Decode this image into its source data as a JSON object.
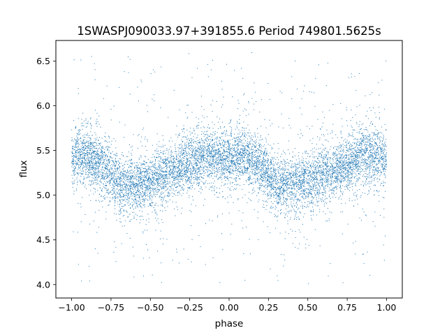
{
  "chart_data": {
    "type": "scatter",
    "title": "1SWASPJ090033.97+391855.6 Period 749801.5625s",
    "xlabel": "phase",
    "ylabel": "flux",
    "xlim": [
      -1.1,
      1.1
    ],
    "ylim": [
      3.85,
      6.73
    ],
    "xticks": [
      {
        "value": -1.0,
        "label": "−1.00"
      },
      {
        "value": -0.75,
        "label": "−0.75"
      },
      {
        "value": -0.5,
        "label": "−0.50"
      },
      {
        "value": -0.25,
        "label": "−0.25"
      },
      {
        "value": 0.0,
        "label": "0.00"
      },
      {
        "value": 0.25,
        "label": "0.25"
      },
      {
        "value": 0.5,
        "label": "0.50"
      },
      {
        "value": 0.75,
        "label": "0.75"
      },
      {
        "value": 1.0,
        "label": "1.00"
      }
    ],
    "yticks": [
      {
        "value": 4.0,
        "label": "4.0"
      },
      {
        "value": 4.5,
        "label": "4.5"
      },
      {
        "value": 5.0,
        "label": "5.0"
      },
      {
        "value": 5.5,
        "label": "5.5"
      },
      {
        "value": 6.0,
        "label": "6.0"
      },
      {
        "value": 6.5,
        "label": "6.5"
      }
    ],
    "grid": false,
    "marker_color": "#1f77b4",
    "point_count": 9000,
    "series": [
      {
        "trend_phase": [
          -1.0,
          -0.9,
          -0.75,
          -0.7,
          -0.5,
          -0.25,
          -0.15,
          0.0,
          0.1,
          0.25,
          0.3,
          0.5,
          0.75,
          0.85,
          1.0
        ],
        "trend_flux": [
          5.4,
          5.45,
          5.25,
          5.1,
          5.15,
          5.35,
          5.45,
          5.4,
          5.45,
          5.25,
          5.1,
          5.15,
          5.35,
          5.45,
          5.4
        ],
        "scatter_sigma": 0.15,
        "outlier_range": [
          4.0,
          6.6
        ]
      }
    ]
  }
}
